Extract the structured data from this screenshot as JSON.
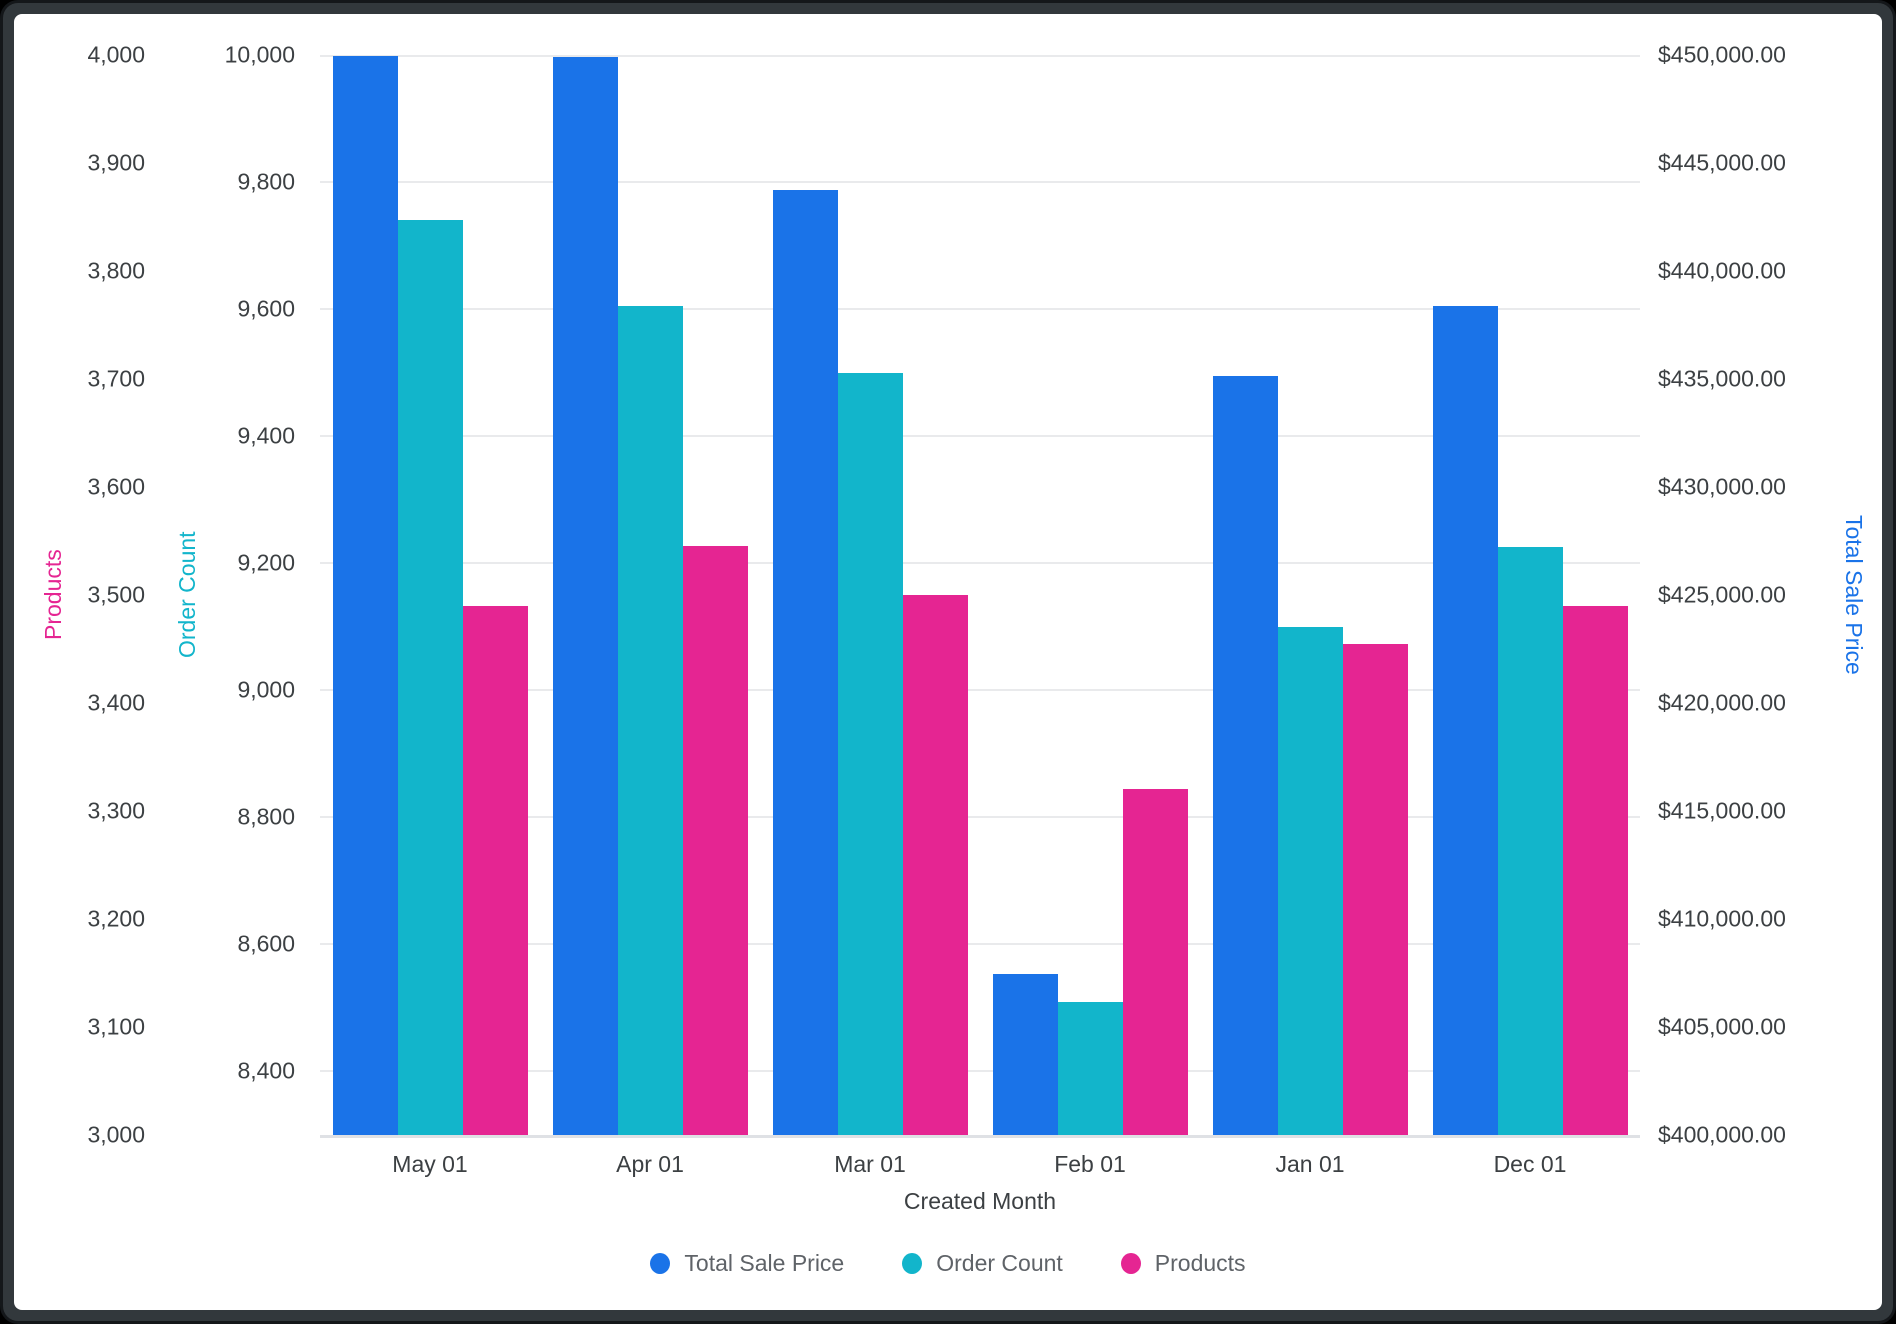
{
  "chart_data": {
    "type": "bar",
    "title": "",
    "xlabel": "Created Month",
    "categories": [
      "May 01",
      "Apr 01",
      "Mar 01",
      "Feb 01",
      "Jan 01",
      "Dec 01"
    ],
    "series": [
      {
        "name": "Total Sale Price",
        "axis": "sale",
        "color": "#1a73e8",
        "values": [
          449950,
          449900,
          443750,
          407450,
          435150,
          438400
        ]
      },
      {
        "name": "Order Count",
        "axis": "orders",
        "color": "#12b5cb",
        "values": [
          9740,
          9605,
          9500,
          8510,
          9100,
          9225
        ]
      },
      {
        "name": "Products",
        "axis": "products",
        "color": "#e52592",
        "values": [
          3490,
          3545,
          3500,
          3320,
          3455,
          3490
        ]
      }
    ],
    "axes": {
      "products": {
        "title": "Products",
        "title_color": "#e52592",
        "side": "left-outer",
        "min": 3000,
        "max": 4000,
        "ticks": [
          {
            "v": 3000,
            "label": "3,000"
          },
          {
            "v": 3100,
            "label": "3,100"
          },
          {
            "v": 3200,
            "label": "3,200"
          },
          {
            "v": 3300,
            "label": "3,300"
          },
          {
            "v": 3400,
            "label": "3,400"
          },
          {
            "v": 3500,
            "label": "3,500"
          },
          {
            "v": 3600,
            "label": "3,600"
          },
          {
            "v": 3700,
            "label": "3,700"
          },
          {
            "v": 3800,
            "label": "3,800"
          },
          {
            "v": 3900,
            "label": "3,900"
          },
          {
            "v": 4000,
            "label": "4,000"
          }
        ]
      },
      "orders": {
        "title": "Order Count",
        "title_color": "#12b5cb",
        "side": "left-inner",
        "min": 8300,
        "max": 10000,
        "gridlines": true,
        "ticks": [
          {
            "v": 8400,
            "label": "8,400"
          },
          {
            "v": 8600,
            "label": "8,600"
          },
          {
            "v": 8800,
            "label": "8,800"
          },
          {
            "v": 9000,
            "label": "9,000"
          },
          {
            "v": 9200,
            "label": "9,200"
          },
          {
            "v": 9400,
            "label": "9,400"
          },
          {
            "v": 9600,
            "label": "9,600"
          },
          {
            "v": 9800,
            "label": "9,800"
          },
          {
            "v": 10000,
            "label": "10,000"
          }
        ]
      },
      "sale": {
        "title": "Total Sale Price",
        "title_color": "#1a73e8",
        "side": "right",
        "min": 400000,
        "max": 450000,
        "ticks": [
          {
            "v": 400000,
            "label": "$400,000.00"
          },
          {
            "v": 405000,
            "label": "$405,000.00"
          },
          {
            "v": 410000,
            "label": "$410,000.00"
          },
          {
            "v": 415000,
            "label": "$415,000.00"
          },
          {
            "v": 420000,
            "label": "$420,000.00"
          },
          {
            "v": 425000,
            "label": "$425,000.00"
          },
          {
            "v": 430000,
            "label": "$430,000.00"
          },
          {
            "v": 435000,
            "label": "$435,000.00"
          },
          {
            "v": 440000,
            "label": "$440,000.00"
          },
          {
            "v": 445000,
            "label": "$445,000.00"
          },
          {
            "v": 450000,
            "label": "$450,000.00"
          }
        ]
      }
    },
    "legend": [
      {
        "label": "Total Sale Price",
        "color": "#1a73e8"
      },
      {
        "label": "Order Count",
        "color": "#12b5cb"
      },
      {
        "label": "Products",
        "color": "#e52592"
      }
    ],
    "legend_position": "bottom",
    "grid": "on",
    "styles": {
      "gridline_color": "#e9eaec",
      "axis_line_color": "#dfe1e5",
      "tick_text_color": "#3c4043",
      "legend_text_color": "#5f6368",
      "background": "#ffffff"
    }
  }
}
